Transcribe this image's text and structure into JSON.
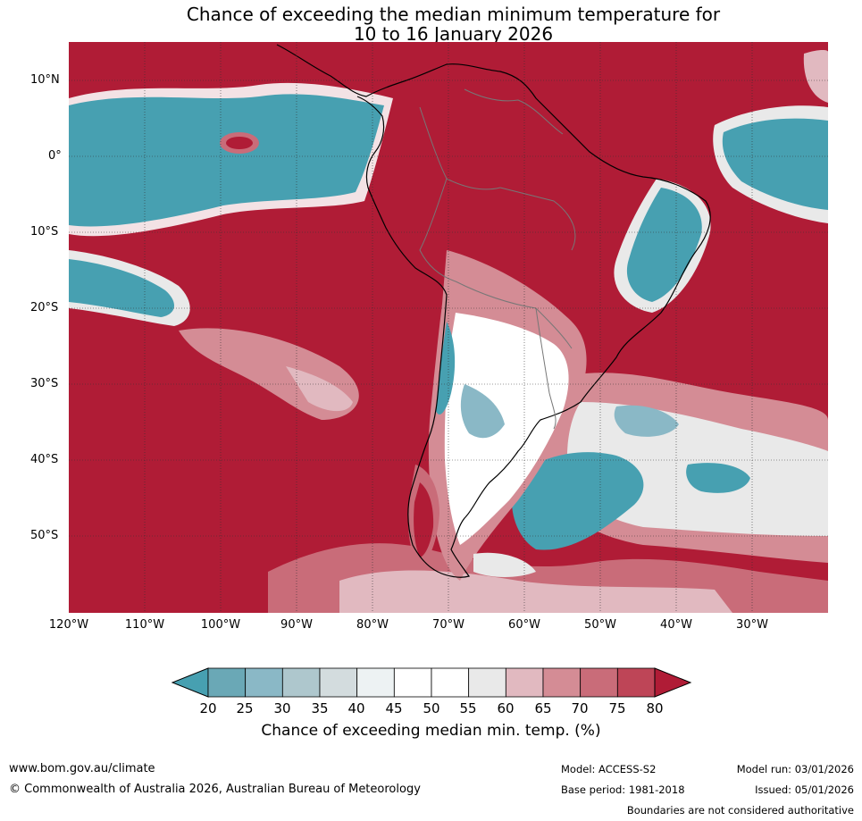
{
  "title": {
    "line1": "Chance of exceeding the median minimum temperature for",
    "line2": "10 to 16 January 2026"
  },
  "map": {
    "region": "South America",
    "lat_labels": [
      "10°N",
      "0°",
      "10°S",
      "20°S",
      "30°S",
      "40°S",
      "50°S"
    ],
    "lon_labels": [
      "120°W",
      "110°W",
      "100°W",
      "90°W",
      "80°W",
      "70°W",
      "60°W",
      "50°W",
      "40°W",
      "30°W"
    ]
  },
  "colorbar": {
    "ticks": [
      "20",
      "25",
      "30",
      "35",
      "40",
      "45",
      "50",
      "55",
      "60",
      "65",
      "70",
      "75",
      "80"
    ],
    "colors": [
      "#47a0b1",
      "#6aa8b6",
      "#8ab8c6",
      "#aec7cd",
      "#d3dcde",
      "#edf2f3",
      "#ffffff",
      "#ffffff",
      "#e9e9e9",
      "#e1b9c0",
      "#d48c95",
      "#c96c79",
      "#be4557",
      "#b01c36"
    ],
    "label": "Chance of exceeding median min. temp. (%)"
  },
  "footer": {
    "website": "www.bom.gov.au/climate",
    "copyright": "© Commonwealth of Australia 2026, Australian Bureau of Meteorology",
    "model": "Model: ACCESS-S2",
    "base_period": "Base period: 1981-2018",
    "model_run": "Model run: 03/01/2026",
    "issued": "Issued: 05/01/2026",
    "disclaimer": "Boundaries are not considered authoritative"
  }
}
